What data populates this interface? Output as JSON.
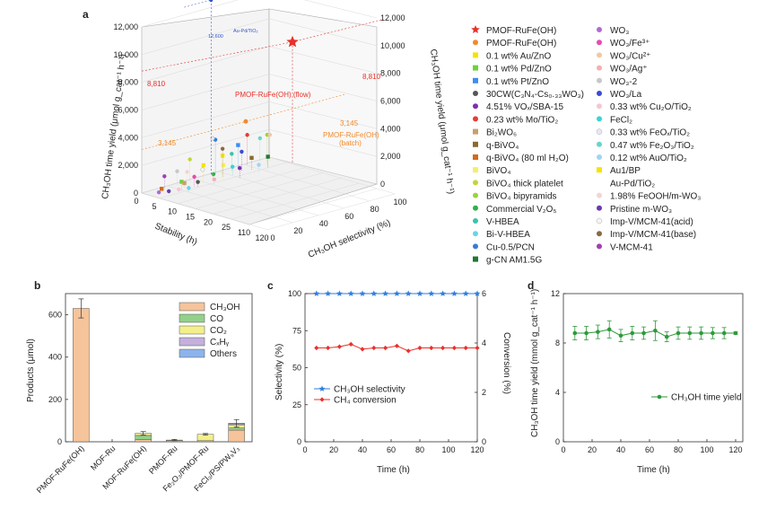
{
  "figure": {
    "panel_letters": [
      "a",
      "b",
      "c",
      "d"
    ]
  },
  "chart_data": [
    {
      "panel": "a",
      "type": "scatter",
      "title": "",
      "axes": {
        "x_label": "Stability (h)",
        "x_ticks": [
          "0",
          "5",
          "10",
          "15",
          "20",
          "25",
          "110",
          "120"
        ],
        "y_label": "CH₃OH selectivity (%)",
        "y_ticks": [
          "0",
          "20",
          "40",
          "60",
          "80",
          "100"
        ],
        "z_label_left": "CH₃OH time yield (μmol g_cat⁻¹ h⁻¹)",
        "z_label_right": "CH₃OH time yield (μmol g_cat⁻¹ h⁻¹)",
        "z_ticks": [
          "0",
          "2,000",
          "4,000",
          "6,000",
          "8,000",
          "10,000",
          "12,000"
        ],
        "zlim": [
          0,
          12000
        ]
      },
      "annotations": [
        {
          "text": "8,810",
          "color": "#e8312a"
        },
        {
          "text": "8,810",
          "color": "#e8312a"
        },
        {
          "text": "3,145",
          "color": "#f08a2b"
        },
        {
          "text": "3,145",
          "color": "#f08a2b"
        },
        {
          "text": "PMOF-RuFe(OH) (flow)",
          "color": "#e8312a"
        },
        {
          "text": "PMOF-RuFe(OH)",
          "color": "#f08a2b"
        },
        {
          "text": "(batch)",
          "color": "#f08a2b"
        },
        {
          "text": "Au-Pd/TiO₂",
          "color": "#2f55c8"
        },
        {
          "text": "12,600",
          "color": "#2f55c8"
        }
      ],
      "highlight_points": [
        {
          "name": "PMOF-RuFe(OH) (flow)",
          "stability_h": 120,
          "selectivity": 100,
          "yield": 8810
        },
        {
          "name": "PMOF-RuFe(OH) (batch)",
          "stability_h": 3,
          "selectivity": 80,
          "yield": 3145
        },
        {
          "name": "Au-Pd/TiO₂",
          "stability_h": 0.5,
          "selectivity": 53,
          "yield": 12600
        }
      ],
      "legend": [
        {
          "label": "PMOF-RuFe(OH)",
          "color": "#e8312a",
          "marker": "star"
        },
        {
          "label": "PMOF-RuFe(OH)",
          "color": "#f08a2b",
          "marker": "circle"
        },
        {
          "label": "0.1 wt% Au/ZnO",
          "color": "#f4e400",
          "marker": "square"
        },
        {
          "label": "0.1 wt% Pd/ZnO",
          "color": "#6ad43a",
          "marker": "square"
        },
        {
          "label": "0.1 wt% Pt/ZnO",
          "color": "#3d8ef0",
          "marker": "square"
        },
        {
          "label": "30CW(C₃N₄-Cs₀.₃₃WO₃)",
          "color": "#555555",
          "marker": "circle"
        },
        {
          "label": "4.51% VOₓ/SBA-15",
          "color": "#7d2fb0",
          "marker": "circle"
        },
        {
          "label": "0.23 wt% Mo/TiO₂",
          "color": "#e83a3a",
          "marker": "circle"
        },
        {
          "label": "Bi₂WO₆",
          "color": "#c8a06a",
          "marker": "square"
        },
        {
          "label": "q-BiVO₄",
          "color": "#8a6a30",
          "marker": "square"
        },
        {
          "label": "q-BiVO₄ (80 ml H₂O)",
          "color": "#d46a1a",
          "marker": "square"
        },
        {
          "label": "BiVO₄",
          "color": "#f4ef6a",
          "marker": "square"
        },
        {
          "label": "BiVO₄ thick platelet",
          "color": "#c4d43a",
          "marker": "circle"
        },
        {
          "label": "BiVO₄ bipyramids",
          "color": "#9bd43a",
          "marker": "circle"
        },
        {
          "label": "Commercial V₂O₅",
          "color": "#2fb04a",
          "marker": "circle"
        },
        {
          "label": "V-HBEA",
          "color": "#3ac4a8",
          "marker": "circle"
        },
        {
          "label": "Bi-V-HBEA",
          "color": "#6ad4e8",
          "marker": "circle"
        },
        {
          "label": "Cu-0.5/PCN",
          "color": "#3a7ad4",
          "marker": "circle"
        },
        {
          "label": "g-CN AM1.5G",
          "color": "#1f7a30",
          "marker": "square"
        },
        {
          "label": "WO₃",
          "color": "#b06ad4",
          "marker": "circle"
        },
        {
          "label": "WO₃/Fe³⁺",
          "color": "#e84ab0",
          "marker": "circle"
        },
        {
          "label": "WO₃/Cu²⁺",
          "color": "#f4c8a0",
          "marker": "circle"
        },
        {
          "label": "WO₃/Ag⁺",
          "color": "#f4b0b0",
          "marker": "circle"
        },
        {
          "label": "WO₃-2",
          "color": "#c8c8c8",
          "marker": "circle"
        },
        {
          "label": "WO₃/La",
          "color": "#3a4ad4",
          "marker": "circle"
        },
        {
          "label": "0.33 wt% Cu₂O/TiO₂",
          "color": "#f4c8d0",
          "marker": "circle"
        },
        {
          "label": "FeCl₂",
          "color": "#3ad4d4",
          "marker": "circle"
        },
        {
          "label": "0.33 wt% FeOₓ/TiO₂",
          "color": "#e8e8f4",
          "marker": "circle"
        },
        {
          "label": "0.47 wt% Fe₂O₃/TiO₂",
          "color": "#6ad4c8",
          "marker": "circle"
        },
        {
          "label": "0.12 wt% AuO/TiO₂",
          "color": "#a0d4f4",
          "marker": "circle"
        },
        {
          "label": "Au1/BP",
          "color": "#f4e400",
          "marker": "square"
        },
        {
          "label": "Au-Pd/TiO₂",
          "color": "#ffffff",
          "marker": "none"
        },
        {
          "label": "1.98% FeOOH/m-WO₃",
          "color": "#f4d4d4",
          "marker": "circle"
        },
        {
          "label": "Pristine m-WO₃",
          "color": "#6a3ab0",
          "marker": "circle"
        },
        {
          "label": "Imp-V/MCM-41(acid)",
          "color": "#f4f4f4",
          "marker": "circle"
        },
        {
          "label": "Imp-V/MCM-41(base)",
          "color": "#8a6a40",
          "marker": "circle"
        },
        {
          "label": "V-MCM-41",
          "color": "#a040b0",
          "marker": "circle"
        }
      ]
    },
    {
      "panel": "b",
      "type": "bar",
      "title": "",
      "ylabel": "Products (μmol)",
      "ylim": [
        0,
        700
      ],
      "yticks": [
        0,
        200,
        400,
        600
      ],
      "categories": [
        "PMOF-RuFe(OH)",
        "MOF-Ru",
        "MOF-RuFe(OH)",
        "PMOF-Ru",
        "Fe₂O₃/PMOF-Ru",
        "FeCl₃/PS/PW₉V₃"
      ],
      "series": [
        {
          "name": "CH₃OH",
          "color": "#f5c49a",
          "values": [
            630,
            0,
            10,
            5,
            5,
            55
          ]
        },
        {
          "name": "CO",
          "color": "#93d18a",
          "values": [
            0,
            0,
            20,
            0,
            0,
            10
          ]
        },
        {
          "name": "CO₂",
          "color": "#f3f08c",
          "values": [
            0,
            0,
            10,
            3,
            30,
            15
          ]
        },
        {
          "name": "CₓHᵧ",
          "color": "#c4b0dc",
          "values": [
            0,
            0,
            0,
            0,
            0,
            5
          ]
        },
        {
          "name": "Others",
          "color": "#8cb4ec",
          "values": [
            0,
            0,
            0,
            0,
            0,
            2
          ]
        }
      ],
      "error": [
        45,
        0,
        8,
        3,
        4,
        18
      ]
    },
    {
      "panel": "c",
      "type": "line",
      "title": "",
      "xlabel": "Time (h)",
      "xlim": [
        0,
        120
      ],
      "xticks": [
        0,
        20,
        40,
        60,
        80,
        100,
        120
      ],
      "ylabel": "Selectivity (%)",
      "ylim": [
        0,
        100
      ],
      "yticks": [
        0,
        25,
        50,
        75,
        100
      ],
      "y2label": "Conversion (%)",
      "y2lim": [
        0,
        6
      ],
      "y2ticks": [
        0,
        2,
        4,
        6
      ],
      "x": [
        8,
        16,
        24,
        32,
        40,
        48,
        56,
        64,
        72,
        80,
        88,
        96,
        104,
        112,
        120
      ],
      "series": [
        {
          "name": "CH₃OH selectivity",
          "color": "#2f7de0",
          "marker": "star",
          "axis": "left",
          "values": [
            100,
            100,
            100,
            100,
            100,
            100,
            100,
            100,
            100,
            100,
            100,
            100,
            100,
            100,
            100
          ]
        },
        {
          "name": "CH₄ conversion",
          "color": "#e8312a",
          "marker": "diamond",
          "axis": "right",
          "values": [
            3.8,
            3.8,
            3.85,
            3.95,
            3.75,
            3.8,
            3.8,
            3.88,
            3.68,
            3.8,
            3.8,
            3.8,
            3.8,
            3.8,
            3.8
          ]
        }
      ]
    },
    {
      "panel": "d",
      "type": "line",
      "title": "",
      "xlabel": "Time (h)",
      "xlim": [
        0,
        125
      ],
      "xticks": [
        0,
        20,
        40,
        60,
        80,
        100,
        120
      ],
      "ylabel": "CH₃OH time yield (mmol g_cat⁻¹ h⁻¹)",
      "ylim": [
        0,
        12
      ],
      "yticks": [
        0,
        4,
        8,
        12
      ],
      "x": [
        8,
        16,
        24,
        32,
        40,
        48,
        56,
        64,
        72,
        80,
        88,
        96,
        104,
        112,
        120
      ],
      "series": [
        {
          "name": "CH₃OH time yield",
          "color": "#2e9a3a",
          "marker": "circle",
          "values": [
            8.8,
            8.8,
            8.9,
            9.1,
            8.6,
            8.8,
            8.8,
            9.0,
            8.5,
            8.8,
            8.8,
            8.8,
            8.8,
            8.8,
            8.8
          ],
          "error": [
            0.55,
            0.55,
            0.55,
            0.7,
            0.5,
            0.55,
            0.5,
            0.8,
            0.4,
            0.5,
            0.5,
            0.5,
            0.45,
            0.45,
            0.1
          ]
        }
      ]
    }
  ]
}
